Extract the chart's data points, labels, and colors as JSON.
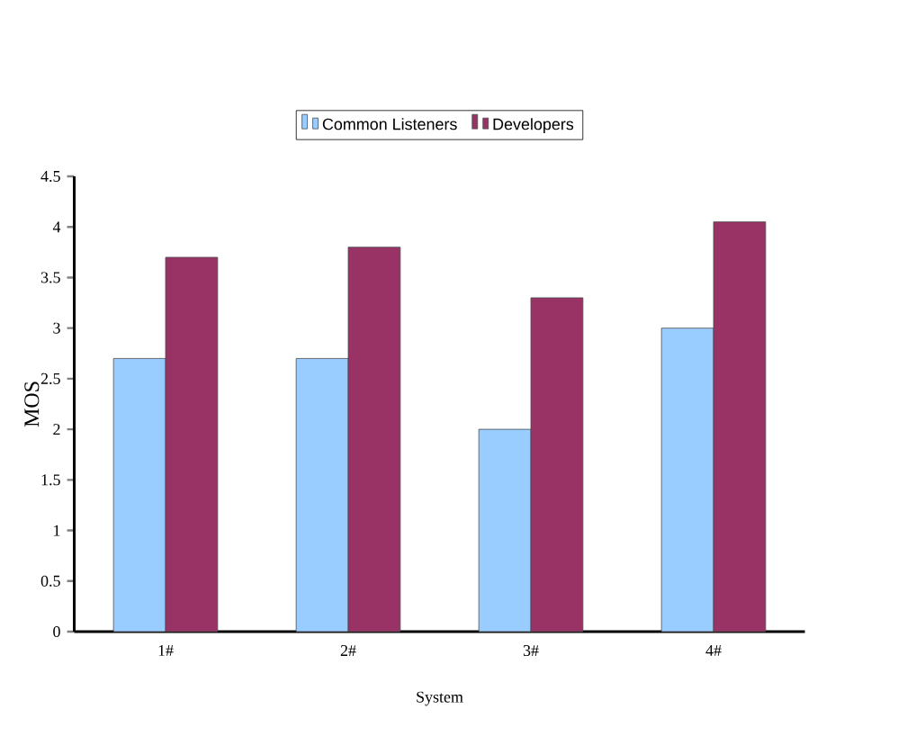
{
  "chart_data": {
    "type": "bar",
    "xlabel": "System",
    "ylabel": "MOS",
    "categories": [
      "1#",
      "2#",
      "3#",
      "4#"
    ],
    "series": [
      {
        "name": "Common Listeners",
        "color": "#99ccff",
        "values": [
          2.7,
          2.7,
          2.0,
          3.0
        ]
      },
      {
        "name": "Developers",
        "color": "#993366",
        "values": [
          3.7,
          3.8,
          3.3,
          4.05
        ]
      }
    ],
    "ylim": [
      0,
      4.5
    ],
    "yticks": [
      0,
      0.5,
      1,
      1.5,
      2,
      2.5,
      3,
      3.5,
      4,
      4.5
    ],
    "grid": false,
    "legend": "top"
  }
}
